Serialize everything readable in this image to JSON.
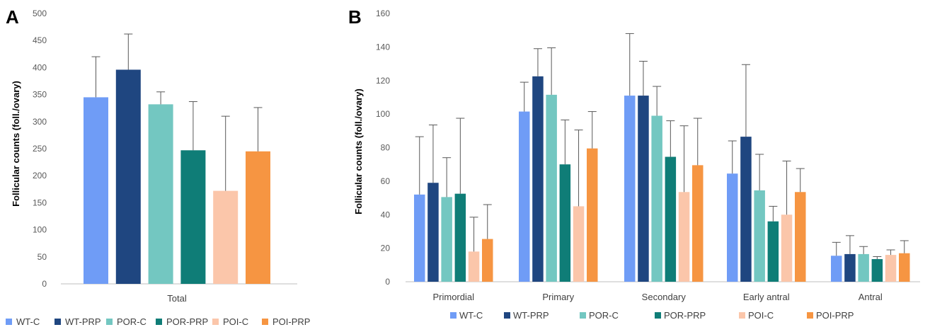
{
  "colors": {
    "WT-C": "#6f9cf6",
    "WT-PRP": "#1f4680",
    "POR-C": "#73c7c1",
    "POR-PRP": "#0f7d77",
    "POI-C": "#fbc6aa",
    "POI-PRP": "#f69542",
    "error": "#595959",
    "axis": "#bfbfbf"
  },
  "chart_data": [
    {
      "panel": "A",
      "type": "bar",
      "ylabel": "Follicular counts (foll./ovary)",
      "ylim": [
        0,
        500
      ],
      "yticks": [
        0,
        50,
        100,
        150,
        200,
        250,
        300,
        350,
        400,
        450,
        500
      ],
      "categories": [
        "Total"
      ],
      "series": [
        {
          "name": "WT-C",
          "values": [
            345
          ],
          "errors": [
            75
          ]
        },
        {
          "name": "WT-PRP",
          "values": [
            396
          ],
          "errors": [
            66
          ]
        },
        {
          "name": "POR-C",
          "values": [
            332
          ],
          "errors": [
            23
          ]
        },
        {
          "name": "POR-PRP",
          "values": [
            247
          ],
          "errors": [
            90
          ]
        },
        {
          "name": "POI-C",
          "values": [
            172
          ],
          "errors": [
            138
          ]
        },
        {
          "name": "POI-PRP",
          "values": [
            245
          ],
          "errors": [
            81
          ]
        }
      ],
      "legend": "bottom"
    },
    {
      "panel": "B",
      "type": "bar",
      "ylabel": "Follicular counts (foll./ovary)",
      "ylim": [
        0,
        160
      ],
      "yticks": [
        0,
        20,
        40,
        60,
        80,
        100,
        120,
        140,
        160
      ],
      "categories": [
        "Primordial",
        "Primary",
        "Secondary",
        "Early antral",
        "Antral"
      ],
      "series": [
        {
          "name": "WT-C",
          "values": [
            52,
            101.5,
            111,
            64.5,
            15.5
          ],
          "errors": [
            34.5,
            17.5,
            37,
            19.5,
            8
          ]
        },
        {
          "name": "WT-PRP",
          "values": [
            59,
            122.5,
            111,
            86.5,
            16.5
          ],
          "errors": [
            34.5,
            16.5,
            20.5,
            43,
            11
          ]
        },
        {
          "name": "POR-C",
          "values": [
            50.5,
            111.5,
            99,
            54.5,
            16.5
          ],
          "errors": [
            23.5,
            28,
            17.5,
            21.5,
            4.5
          ]
        },
        {
          "name": "POR-PRP",
          "values": [
            52.5,
            70,
            74.5,
            36,
            13.5
          ],
          "errors": [
            45,
            26.5,
            21.5,
            9,
            1.5
          ]
        },
        {
          "name": "POI-C",
          "values": [
            18,
            45,
            53.5,
            40,
            16
          ],
          "errors": [
            20.5,
            45.5,
            39.5,
            32,
            3
          ]
        },
        {
          "name": "POI-PRP",
          "values": [
            25.5,
            79.5,
            69.5,
            53.5,
            17
          ],
          "errors": [
            20.5,
            22,
            28,
            14,
            7.5
          ]
        }
      ],
      "legend": "bottom"
    }
  ],
  "panels": {
    "A": {
      "letter": "A",
      "ylabel": "Follicular counts (foll./ovary)"
    },
    "B": {
      "letter": "B",
      "ylabel": "Follicular counts (foll./ovary)"
    }
  },
  "legend_labels": [
    "WT-C",
    "WT-PRP",
    "POR-C",
    "POR-PRP",
    "POI-C",
    "POI-PRP"
  ]
}
